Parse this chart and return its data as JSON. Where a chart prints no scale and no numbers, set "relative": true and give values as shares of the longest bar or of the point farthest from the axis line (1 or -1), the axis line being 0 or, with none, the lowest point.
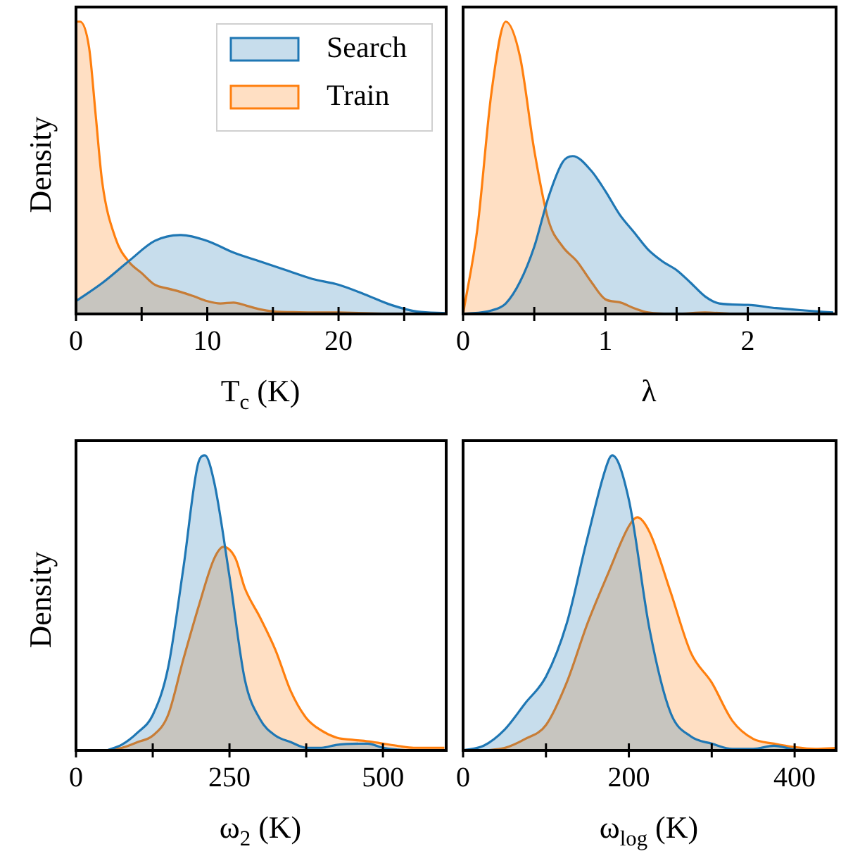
{
  "chart_data": [
    {
      "type": "area",
      "xlabel": "T$_{c}$ (K)",
      "ylabel": "Density",
      "relative": true,
      "legend": "top right",
      "xlim": [
        0,
        28.2
      ],
      "xticks": [
        0,
        {
          "value": 5,
          "label": null
        },
        10,
        {
          "value": 15,
          "label": null
        },
        20,
        {
          "value": 25,
          "label": null
        }
      ],
      "series": [
        {
          "name": "Search",
          "color": "#1f77b4",
          "x": [
            0,
            2,
            4,
            6,
            8,
            10,
            12,
            14,
            16,
            18,
            20,
            22,
            24,
            26,
            28.2
          ],
          "values": [
            0.044,
            0.106,
            0.18,
            0.25,
            0.27,
            0.25,
            0.21,
            0.18,
            0.15,
            0.12,
            0.1,
            0.067,
            0.031,
            0.008,
            0.003
          ]
        },
        {
          "name": "Train",
          "color": "#ff7f0e",
          "x": [
            0,
            0.3,
            1,
            1.5,
            2,
            3,
            4,
            5,
            6,
            7,
            8,
            9,
            10,
            11,
            12,
            13,
            14,
            15,
            17,
            20,
            22,
            24
          ],
          "values": [
            1,
            1,
            0.91,
            0.68,
            0.45,
            0.26,
            0.18,
            0.14,
            0.1,
            0.087,
            0.075,
            0.06,
            0.044,
            0.036,
            0.039,
            0.028,
            0.016,
            0.009,
            0.006,
            0.005,
            0.003,
            0
          ]
        }
      ]
    },
    {
      "type": "area",
      "xlabel": "λ",
      "relative": true,
      "xlim": [
        0,
        2.62
      ],
      "xticks": [
        0,
        {
          "value": 0.5,
          "label": null
        },
        1,
        {
          "value": 1.5,
          "label": null
        },
        2,
        {
          "value": 2.5,
          "label": null
        }
      ],
      "series": [
        {
          "color": "#1f77b4",
          "x": [
            0,
            0.2,
            0.3,
            0.4,
            0.5,
            0.6,
            0.7,
            0.77,
            0.9,
            1.0,
            1.1,
            1.2,
            1.3,
            1.4,
            1.5,
            1.6,
            1.7,
            1.8,
            2.0,
            2.2,
            2.4,
            2.6
          ],
          "values": [
            0,
            0.012,
            0.036,
            0.11,
            0.23,
            0.4,
            0.52,
            0.54,
            0.49,
            0.42,
            0.34,
            0.28,
            0.22,
            0.18,
            0.15,
            0.106,
            0.06,
            0.036,
            0.031,
            0.02,
            0.012,
            0.005
          ]
        },
        {
          "color": "#ff7f0e",
          "x": [
            0,
            0.1,
            0.2,
            0.3,
            0.4,
            0.5,
            0.6,
            0.7,
            0.8,
            0.9,
            1.0,
            1.1,
            1.2,
            1.3,
            1.5,
            1.7,
            1.9
          ],
          "values": [
            0,
            0.29,
            0.76,
            1,
            0.88,
            0.56,
            0.32,
            0.23,
            0.18,
            0.11,
            0.05,
            0.04,
            0.02,
            0.005,
            0,
            0.005,
            0
          ]
        }
      ]
    },
    {
      "type": "area",
      "xlabel": "ω$_{2}$ (K)",
      "ylabel": "Density",
      "relative": true,
      "xlim": [
        0,
        603
      ],
      "xticks": [
        0,
        {
          "value": 125,
          "label": null
        },
        250,
        {
          "value": 375,
          "label": null
        },
        500
      ],
      "series": [
        {
          "color": "#1f77b4",
          "x": [
            50,
            75,
            100,
            125,
            150,
            175,
            200,
            210,
            225,
            250,
            275,
            300,
            325,
            350,
            375,
            400,
            425,
            475,
            500,
            525,
            550
          ],
          "values": [
            0,
            0.02,
            0.06,
            0.12,
            0.28,
            0.62,
            0.98,
            1,
            0.91,
            0.59,
            0.24,
            0.105,
            0.05,
            0.028,
            0.009,
            0.009,
            0.019,
            0.023,
            0.009,
            0.003,
            0
          ]
        },
        {
          "color": "#ff7f0e",
          "x": [
            50,
            75,
            100,
            125,
            150,
            175,
            200,
            225,
            240,
            260,
            275,
            300,
            325,
            350,
            375,
            400,
            425,
            450,
            475,
            500,
            525,
            550,
            600
          ],
          "values": [
            0,
            0.009,
            0.028,
            0.05,
            0.12,
            0.31,
            0.49,
            0.65,
            0.69,
            0.65,
            0.55,
            0.45,
            0.34,
            0.2,
            0.11,
            0.067,
            0.043,
            0.036,
            0.031,
            0.023,
            0.015,
            0.009,
            0.009
          ]
        }
      ]
    },
    {
      "type": "area",
      "xlabel": "ω$_{log}$ (K)",
      "relative": true,
      "xlim": [
        0,
        450
      ],
      "xticks": [
        0,
        {
          "value": 100,
          "label": null
        },
        200,
        {
          "value": 300,
          "label": null
        },
        400
      ],
      "series": [
        {
          "color": "#1f77b4",
          "x": [
            0,
            25,
            50,
            75,
            100,
            125,
            150,
            175,
            180,
            200,
            225,
            250,
            275,
            300,
            325,
            350,
            375,
            400,
            425
          ],
          "values": [
            0,
            0.016,
            0.07,
            0.16,
            0.25,
            0.43,
            0.72,
            0.98,
            1,
            0.85,
            0.41,
            0.13,
            0.047,
            0.023,
            0.005,
            0.005,
            0.016,
            0.003,
            0
          ]
        },
        {
          "color": "#ff7f0e",
          "x": [
            25,
            50,
            75,
            100,
            125,
            150,
            175,
            200,
            210,
            225,
            250,
            275,
            300,
            325,
            350,
            375,
            400,
            425,
            450
          ],
          "values": [
            0,
            0.008,
            0.039,
            0.086,
            0.23,
            0.43,
            0.6,
            0.76,
            0.79,
            0.74,
            0.54,
            0.33,
            0.23,
            0.1,
            0.039,
            0.023,
            0.011,
            0.005,
            0.008
          ]
        }
      ]
    }
  ]
}
